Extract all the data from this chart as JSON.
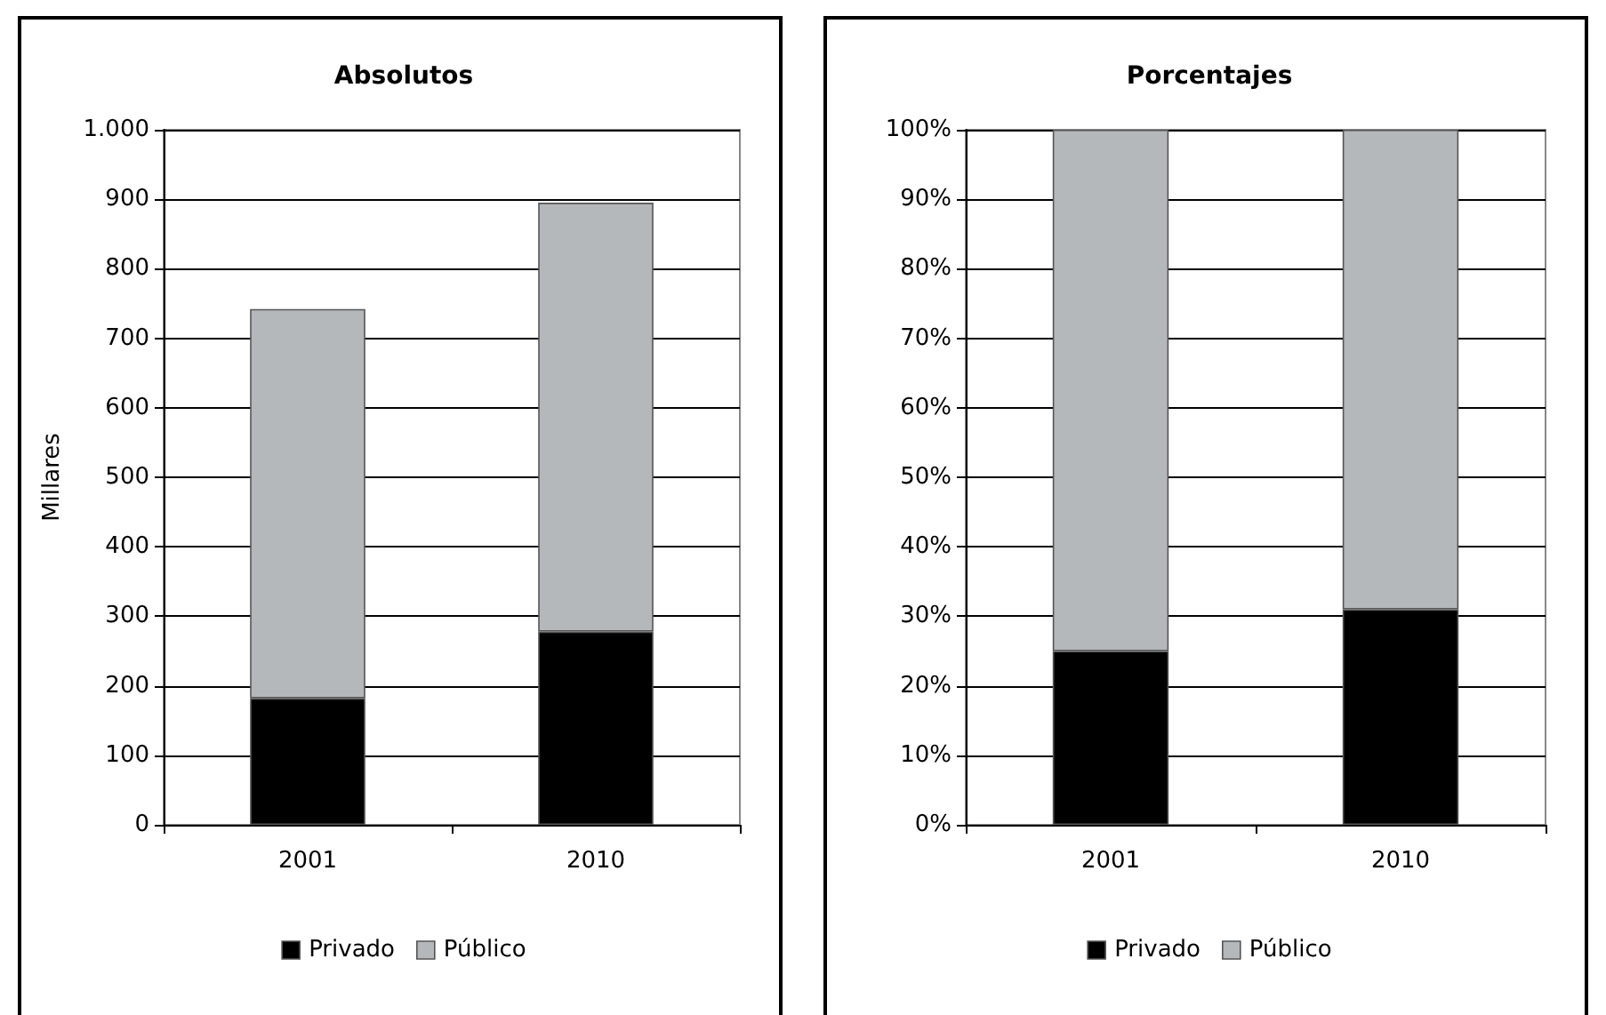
{
  "chart_data": [
    {
      "type": "bar",
      "title": "Absolutos",
      "ylabel": "Millares",
      "categories": [
        "2001",
        "2010"
      ],
      "stacked": true,
      "series": [
        {
          "name": "Privado",
          "color": "#000000",
          "values": [
            182,
            278
          ]
        },
        {
          "name": "Público",
          "color": "#b5b8ba",
          "values": [
            560,
            617
          ]
        }
      ],
      "ylim": [
        0,
        1000
      ],
      "yticks": [
        0,
        100,
        200,
        300,
        400,
        500,
        600,
        700,
        800,
        900,
        {
          "value": 1000,
          "label": "1.000"
        }
      ],
      "grid": "y",
      "legend": "bottom"
    },
    {
      "type": "bar",
      "title": "Porcentajes",
      "categories": [
        "2001",
        "2010"
      ],
      "stacked": true,
      "series": [
        {
          "name": "Privado",
          "color": "#000000",
          "values": [
            25,
            31
          ]
        },
        {
          "name": "Público",
          "color": "#b5b8ba",
          "values": [
            75,
            69
          ]
        }
      ],
      "ylim": [
        0,
        100
      ],
      "yticks": [
        {
          "value": 0,
          "label": "0%"
        },
        {
          "value": 10,
          "label": "10%"
        },
        {
          "value": 20,
          "label": "20%"
        },
        {
          "value": 30,
          "label": "30%"
        },
        {
          "value": 40,
          "label": "40%"
        },
        {
          "value": 50,
          "label": "50%"
        },
        {
          "value": 60,
          "label": "60%"
        },
        {
          "value": 70,
          "label": "70%"
        },
        {
          "value": 80,
          "label": "80%"
        },
        {
          "value": 90,
          "label": "90%"
        },
        {
          "value": 100,
          "label": "100%"
        }
      ],
      "grid": "y",
      "legend": "bottom"
    }
  ]
}
